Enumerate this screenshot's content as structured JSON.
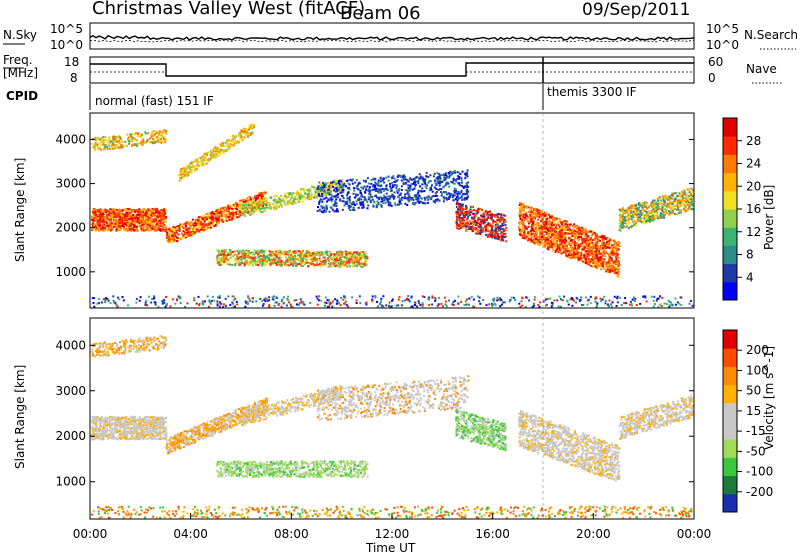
{
  "header": {
    "title": "Christmas Valley West (fitACF)",
    "beam": "Beam 06",
    "date": "09/Sep/2011"
  },
  "colors": {
    "power_scale": [
      "#0000ff",
      "#1e3aa8",
      "#2d8a8a",
      "#3cb371",
      "#8fd14f",
      "#f0e020",
      "#ffb000",
      "#ff7a00",
      "#ff2a00",
      "#e00000"
    ],
    "velocity_scale": [
      "#1a2fb0",
      "#1e7a3c",
      "#3cc83c",
      "#a0dc5a",
      "#c8c8c8",
      "#c8c8c8",
      "#ffb000",
      "#ff8c00",
      "#ff4a00",
      "#e00000"
    ]
  },
  "panel_top": {
    "left_label_1": "N.Sky",
    "left_ticks_1": [
      "10^5",
      "10^0"
    ],
    "right_ticks_1": [
      "10^5",
      "10^0"
    ],
    "right_label_1": "N.Search",
    "left_label_2a": "Freq.",
    "left_label_2b": "[MHz]",
    "left_ticks_2": [
      "18",
      "8"
    ],
    "right_ticks_2": [
      "60",
      "0"
    ],
    "right_label_2": "Nave",
    "cpid_label": "CPID",
    "mode_1": "normal (fast) 151 IF",
    "mode_2": "themis 3300 IF"
  },
  "chart_data": [
    {
      "type": "heatmap",
      "name": "power",
      "ylabel": "Slant Range [km]",
      "y_ticks": [
        1000,
        2000,
        3000,
        4000
      ],
      "ylim": [
        180,
        4600
      ],
      "xlim": [
        0,
        24
      ],
      "x_ticks": [
        "00:00",
        "04:00",
        "08:00",
        "12:00",
        "16:00",
        "20:00",
        "00:00"
      ],
      "colorbar": {
        "label": "Power [dB]",
        "ticks": [
          "28",
          "24",
          "20",
          "16",
          "12",
          "8",
          "4"
        ],
        "range": [
          0,
          30
        ]
      }
    },
    {
      "type": "heatmap",
      "name": "velocity",
      "ylabel": "Slant Range [km]",
      "y_ticks": [
        1000,
        2000,
        3000,
        4000
      ],
      "ylim": [
        180,
        4600
      ],
      "xlim": [
        0,
        24
      ],
      "x_ticks": [
        "00:00",
        "04:00",
        "08:00",
        "12:00",
        "16:00",
        "20:00",
        "00:00"
      ],
      "xlabel": "Time UT",
      "colorbar": {
        "label": "Velocity [m s^-1]",
        "ticks": [
          "200",
          "100",
          "50",
          "15",
          "-15",
          "-50",
          "-100",
          "-200"
        ],
        "range": [
          -250,
          250
        ]
      }
    }
  ]
}
